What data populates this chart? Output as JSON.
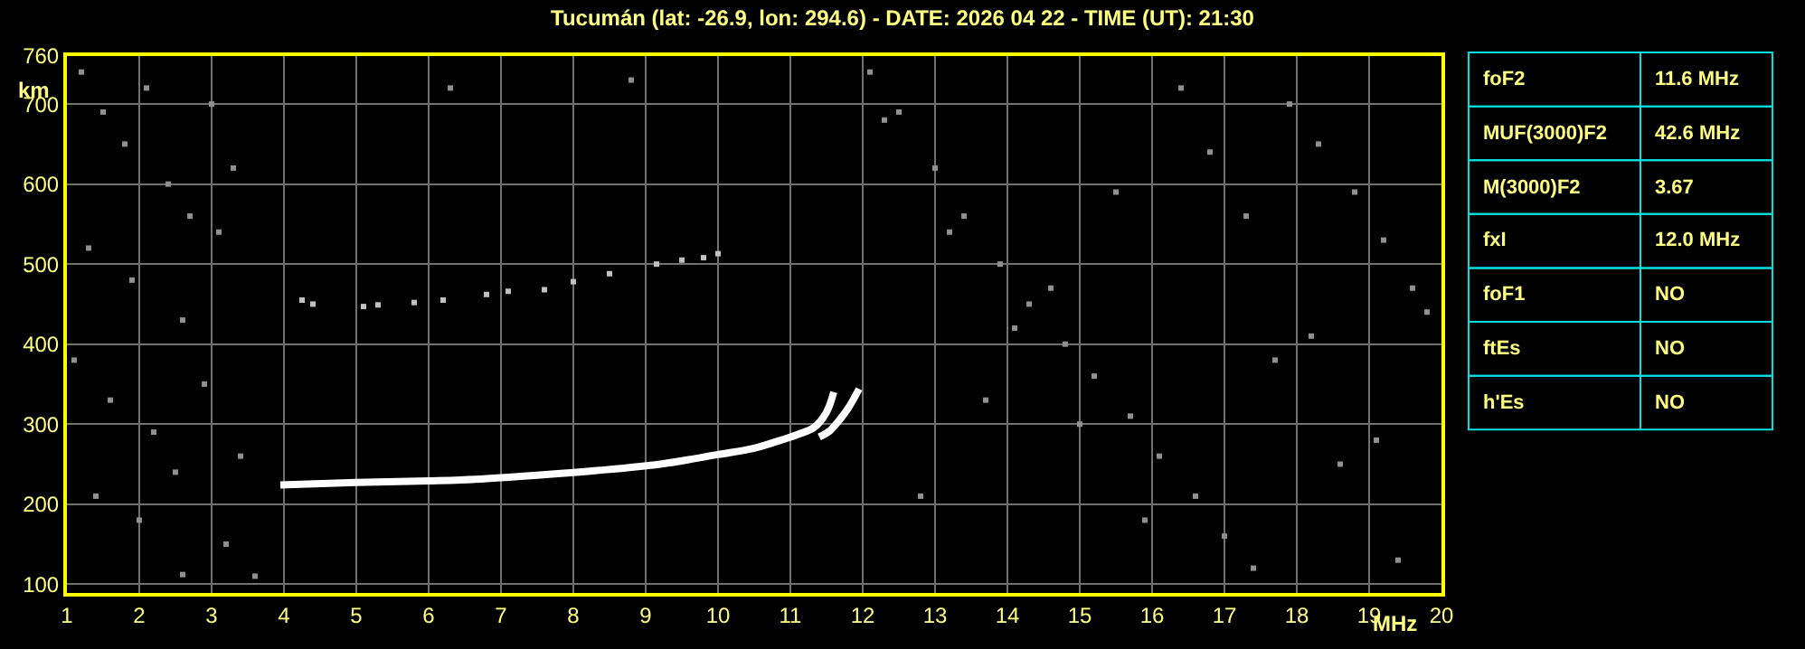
{
  "chart_data": [
    {
      "type": "line",
      "title": "Tucumán (lat: -26.9, lon: 294.6) - DATE: 2026 04 22 - TIME (UT): 21:30",
      "xlabel": "MHz",
      "ylabel": "km",
      "xlim": [
        1,
        20
      ],
      "xticks": [
        1,
        2,
        3,
        4,
        5,
        6,
        7,
        8,
        9,
        10,
        11,
        12,
        13,
        14,
        15,
        16,
        17,
        18,
        19,
        20
      ],
      "ylim": [
        89,
        760
      ],
      "yticks": [
        100,
        200,
        300,
        400,
        500,
        600,
        700,
        760
      ],
      "grid": true,
      "line_style": "solid",
      "series": [
        {
          "color": "#ffffff",
          "marker": "none",
          "x": [
            3.95,
            5.0,
            6.0,
            6.65,
            7.5,
            8.33,
            9.2,
            10.0,
            10.5,
            10.8,
            11.1,
            11.33,
            11.5,
            11.6
          ],
          "values": [
            224,
            227,
            229,
            231,
            236,
            242,
            250,
            262,
            270,
            278,
            287,
            296,
            315,
            340
          ]
        },
        {
          "color": "#ffffff",
          "marker": "none",
          "x": [
            11.4,
            11.55,
            11.65,
            11.8,
            11.95
          ],
          "values": [
            284,
            292,
            302,
            320,
            344
          ]
        },
        {
          "type": "scatter",
          "color": "#c0c0c0",
          "marker": "square",
          "x": [
            4.25,
            4.4,
            5.1,
            5.3,
            5.8,
            6.2,
            6.8,
            7.1,
            7.6,
            8.0,
            8.5,
            9.15,
            9.5,
            9.8,
            10.0
          ],
          "values": [
            455,
            450,
            447,
            449,
            452,
            455,
            462,
            466,
            468,
            478,
            488,
            500,
            505,
            508,
            513
          ]
        },
        {
          "type": "scatter",
          "color": "#909090",
          "marker": "square",
          "x": [
            1.2,
            1.5,
            1.8,
            2.1,
            2.4,
            2.7,
            3.0,
            3.3,
            1.3,
            1.9,
            2.6,
            3.1,
            1.1,
            1.6,
            2.2,
            2.9,
            3.4,
            1.4,
            2.0,
            2.5,
            3.2,
            2.6,
            3.6,
            12.1,
            12.5,
            13.0,
            13.4,
            13.9,
            14.3,
            14.8,
            15.2,
            15.7,
            16.1,
            16.6,
            17.0,
            17.4,
            17.9,
            18.3,
            18.8,
            19.2,
            19.6,
            12.3,
            13.2,
            14.1,
            15.0,
            15.9,
            16.8,
            17.7,
            18.6,
            19.4,
            12.8,
            13.7,
            14.6,
            15.5,
            16.4,
            17.3,
            18.2,
            19.1,
            19.8,
            6.3,
            8.8
          ],
          "values": [
            740,
            690,
            650,
            720,
            600,
            560,
            700,
            620,
            520,
            480,
            430,
            540,
            380,
            330,
            290,
            350,
            260,
            210,
            180,
            240,
            150,
            112,
            110,
            740,
            690,
            620,
            560,
            500,
            450,
            400,
            360,
            310,
            260,
            210,
            160,
            120,
            700,
            650,
            590,
            530,
            470,
            680,
            540,
            420,
            300,
            180,
            640,
            380,
            250,
            130,
            210,
            330,
            470,
            590,
            720,
            560,
            410,
            280,
            440,
            720,
            730
          ]
        }
      ]
    },
    {
      "type": "other",
      "annotations": [
        "foF2",
        "11.6 MHz",
        "MUF(3000)F2",
        "42.6 MHz",
        "M(3000)F2",
        "3.67",
        "fxI",
        "12.0 MHz",
        "foF1",
        "NO",
        "ftEs",
        "NO",
        "h'Es",
        "NO"
      ]
    }
  ]
}
